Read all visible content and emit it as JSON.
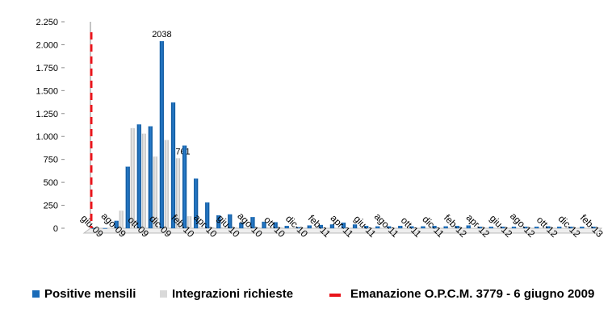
{
  "chart_data": {
    "type": "bar",
    "categories": [
      "giu-09",
      null,
      "ago-09",
      null,
      "ott-09",
      null,
      "dic-09",
      null,
      "feb-10",
      null,
      "apr-10",
      null,
      "giu-10",
      null,
      "ago-10",
      null,
      "ott-10",
      null,
      "dic-10",
      null,
      "feb-11",
      null,
      "apr-11",
      null,
      "giu-11",
      null,
      "ago-11",
      null,
      "ott-11",
      null,
      "dic-11",
      null,
      "feb-12",
      null,
      "apr-12",
      null,
      "giu-12",
      null,
      "ago-12",
      null,
      "ott-12",
      null,
      "dic-12",
      null,
      "feb-13"
    ],
    "series": [
      {
        "name": "Positive mensili",
        "color": "#1a6bb8",
        "values": [
          0,
          0,
          80,
          670,
          1130,
          1110,
          2038,
          1370,
          900,
          540,
          280,
          140,
          150,
          60,
          120,
          70,
          65,
          25,
          10,
          30,
          35,
          40,
          60,
          40,
          25,
          20,
          20,
          25,
          20,
          20,
          25,
          20,
          25,
          30,
          15,
          15,
          15,
          15,
          15,
          15,
          20,
          15,
          15,
          15,
          15
        ],
        "value_labels": [
          null,
          null,
          null,
          null,
          null,
          null,
          "2038",
          null,
          null,
          null,
          null,
          null,
          null,
          null,
          null,
          null,
          null,
          null,
          null,
          null,
          null,
          null,
          null,
          null,
          null,
          null,
          null,
          null,
          null,
          null,
          null,
          null,
          null,
          null,
          null,
          null,
          null,
          null,
          null,
          null,
          null,
          null,
          null,
          null,
          null
        ]
      },
      {
        "name": "Integrazioni richieste",
        "color": "#d9d9d9",
        "values": [
          0,
          0,
          190,
          1090,
          1030,
          780,
          960,
          761,
          130,
          20,
          10,
          10,
          10,
          10,
          10,
          10,
          10,
          5,
          5,
          5,
          5,
          5,
          5,
          5,
          5,
          5,
          5,
          5,
          5,
          5,
          5,
          5,
          5,
          5,
          5,
          5,
          5,
          5,
          5,
          5,
          5,
          5,
          5,
          5,
          5
        ],
        "value_labels": [
          null,
          null,
          null,
          null,
          null,
          null,
          null,
          "761",
          null,
          null,
          null,
          null,
          null,
          null,
          null,
          null,
          null,
          null,
          null,
          null,
          null,
          null,
          null,
          null,
          null,
          null,
          null,
          null,
          null,
          null,
          null,
          null,
          null,
          null,
          null,
          null,
          null,
          null,
          null,
          null,
          null,
          null,
          null,
          null,
          null
        ]
      }
    ],
    "reference_lines": [
      {
        "name": "Emanazione O.P.C.M. 3779 - 6 giugno 2009",
        "color": "#e8141b",
        "x": "giu-09"
      }
    ],
    "ylim": [
      0,
      2250
    ],
    "yticks": [
      0,
      250,
      500,
      750,
      {
        "value": 1000,
        "label": "1.000"
      },
      {
        "value": 1250,
        "label": "1.250"
      },
      {
        "value": 1500,
        "label": "1.500"
      },
      {
        "value": 1750,
        "label": "1.750"
      },
      {
        "value": 2000,
        "label": "2.000"
      },
      {
        "value": 2250,
        "label": "2.250"
      }
    ],
    "grid": false
  }
}
